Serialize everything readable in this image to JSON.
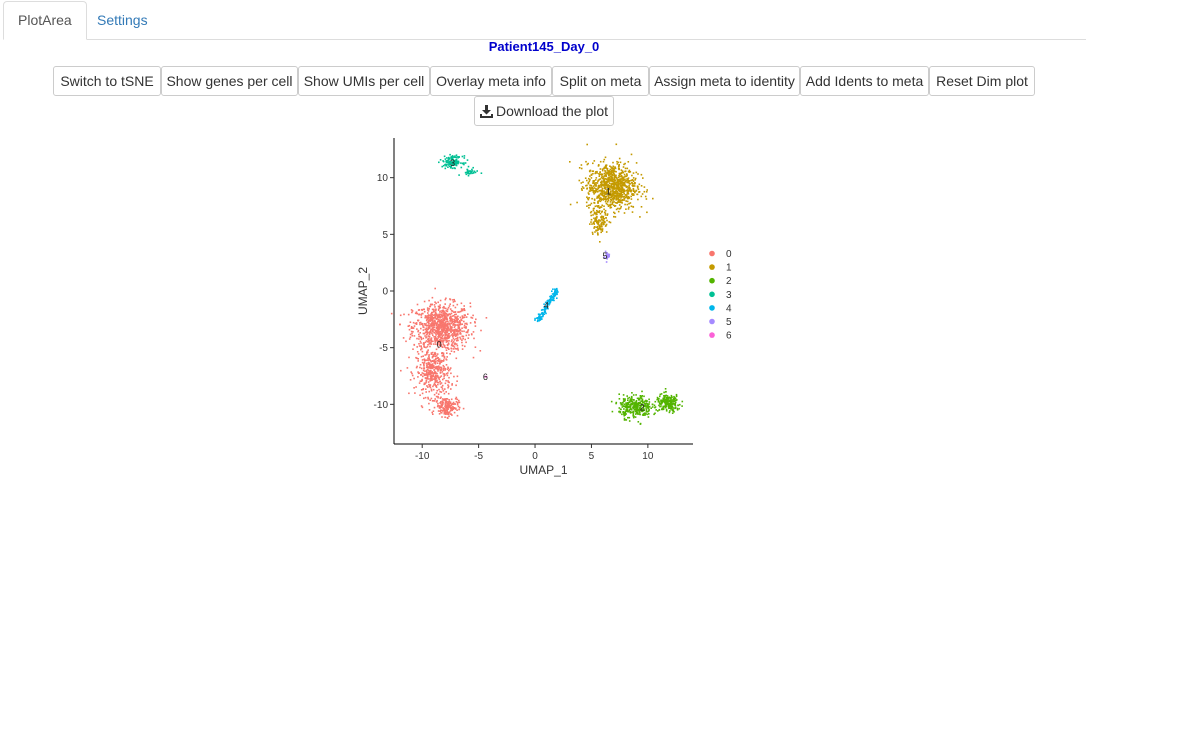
{
  "tabs": [
    {
      "label": "PlotArea",
      "active": true
    },
    {
      "label": "Settings",
      "active": false
    }
  ],
  "plot_title": "Patient145_Day_0",
  "buttons": [
    "Switch to tSNE",
    "Show genes per cell",
    "Show UMIs per cell",
    "Overlay meta info",
    "Split on meta",
    "Assign meta to identity",
    "Add Idents to meta",
    "Reset Dim plot"
  ],
  "download_label": "Download the plot",
  "icons": {
    "download": "download-icon"
  },
  "colors": {
    "title": "#0000cc",
    "tab_link": "#337ab7",
    "clusters": [
      "#F8766D",
      "#C49A00",
      "#53B400",
      "#00C094",
      "#00B6EB",
      "#A58AFF",
      "#FB61D7"
    ]
  },
  "chart_data": {
    "type": "scatter",
    "title": "",
    "xlabel": "UMAP_1",
    "ylabel": "UMAP_2",
    "xlim": [
      -12.5,
      14
    ],
    "ylim": [
      -13.5,
      13.5
    ],
    "xticks": [
      -10,
      -5,
      0,
      5,
      10
    ],
    "yticks": [
      -10,
      -5,
      0,
      5,
      10
    ],
    "grid": false,
    "legend_position": "right",
    "legend": [
      "0",
      "1",
      "2",
      "3",
      "4",
      "5",
      "6"
    ],
    "clusters": [
      {
        "name": "0",
        "color": "#F8766D",
        "label_at": [
          -8.5,
          -4.7
        ],
        "blobs": [
          {
            "center": [
              -8.3,
              -3.2
            ],
            "spread": [
              2.3,
              1.9
            ],
            "n": 900
          },
          {
            "center": [
              -9.0,
              -7.2
            ],
            "spread": [
              1.4,
              1.9
            ],
            "n": 400
          },
          {
            "center": [
              -7.8,
              -10.2
            ],
            "spread": [
              0.9,
              0.8
            ],
            "n": 180
          }
        ]
      },
      {
        "name": "1",
        "color": "#C49A00",
        "label_at": [
          6.5,
          8.8
        ],
        "blobs": [
          {
            "center": [
              6.8,
              9.2
            ],
            "spread": [
              2.0,
              1.9
            ],
            "n": 900
          },
          {
            "center": [
              5.7,
              6.2
            ],
            "spread": [
              0.7,
              1.1
            ],
            "n": 120
          }
        ]
      },
      {
        "name": "2",
        "color": "#53B400",
        "label_at": [
          9.5,
          -10.3
        ],
        "blobs": [
          {
            "center": [
              8.9,
              -10.2
            ],
            "spread": [
              1.3,
              0.9
            ],
            "n": 320
          },
          {
            "center": [
              11.8,
              -9.9
            ],
            "spread": [
              1.0,
              0.7
            ],
            "n": 200
          }
        ]
      },
      {
        "name": "3",
        "color": "#00C094",
        "label_at": [
          -7.3,
          11.3
        ],
        "blobs": [
          {
            "center": [
              -7.3,
              11.4
            ],
            "spread": [
              0.8,
              0.45
            ],
            "n": 130
          },
          {
            "center": [
              -5.8,
              10.5
            ],
            "spread": [
              0.7,
              0.25
            ],
            "n": 30
          }
        ]
      },
      {
        "name": "4",
        "color": "#00B6EB",
        "label_at": [
          1.0,
          -1.3
        ],
        "line": {
          "from": [
            0.3,
            -2.6
          ],
          "to": [
            1.9,
            0.1
          ],
          "n": 140
        }
      },
      {
        "name": "5",
        "color": "#A58AFF",
        "label_at": [
          6.2,
          3.1
        ],
        "blobs": [
          {
            "center": [
              6.4,
              3.1
            ],
            "spread": [
              0.25,
              0.35
            ],
            "n": 25
          }
        ]
      },
      {
        "name": "6",
        "color": "#FB61D7",
        "label_at": [
          -4.4,
          -7.6
        ],
        "blobs": [
          {
            "center": [
              -4.4,
              -7.6
            ],
            "spread": [
              0.1,
              0.1
            ],
            "n": 4
          }
        ]
      }
    ]
  }
}
